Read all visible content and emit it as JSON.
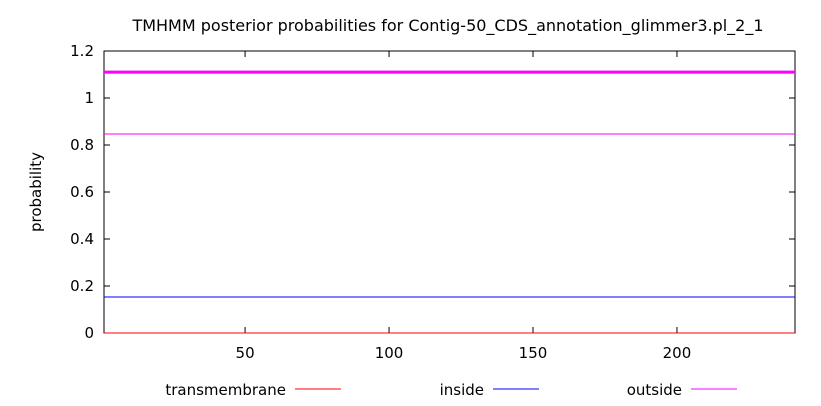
{
  "chart_data": {
    "type": "line",
    "title": "TMHMM posterior probabilities for Contig-50_CDS_annotation_glimmer3.pl_2_1",
    "xlabel": "",
    "ylabel": "probability",
    "xlim": [
      1,
      241
    ],
    "ylim": [
      0,
      1.2
    ],
    "x_ticks": [
      50,
      100,
      150,
      200
    ],
    "y_ticks": [
      0,
      0.2,
      0.4,
      0.6,
      0.8,
      1,
      1.2
    ],
    "grid": false,
    "legend_position": "bottom",
    "series": [
      {
        "name": "transmembrane",
        "color": "#ff0000",
        "x": [
          1,
          241
        ],
        "y": [
          0,
          0
        ]
      },
      {
        "name": "inside",
        "color": "#0000ff",
        "x": [
          1,
          241
        ],
        "y": [
          0.153,
          0.153
        ]
      },
      {
        "name": "outside",
        "color": "#ff00ff",
        "x": [
          1,
          241
        ],
        "y": [
          0.847,
          0.847
        ]
      }
    ],
    "extra_lines": [
      {
        "color": "#ff00ff",
        "y": 1.11,
        "style": "thick"
      }
    ]
  }
}
